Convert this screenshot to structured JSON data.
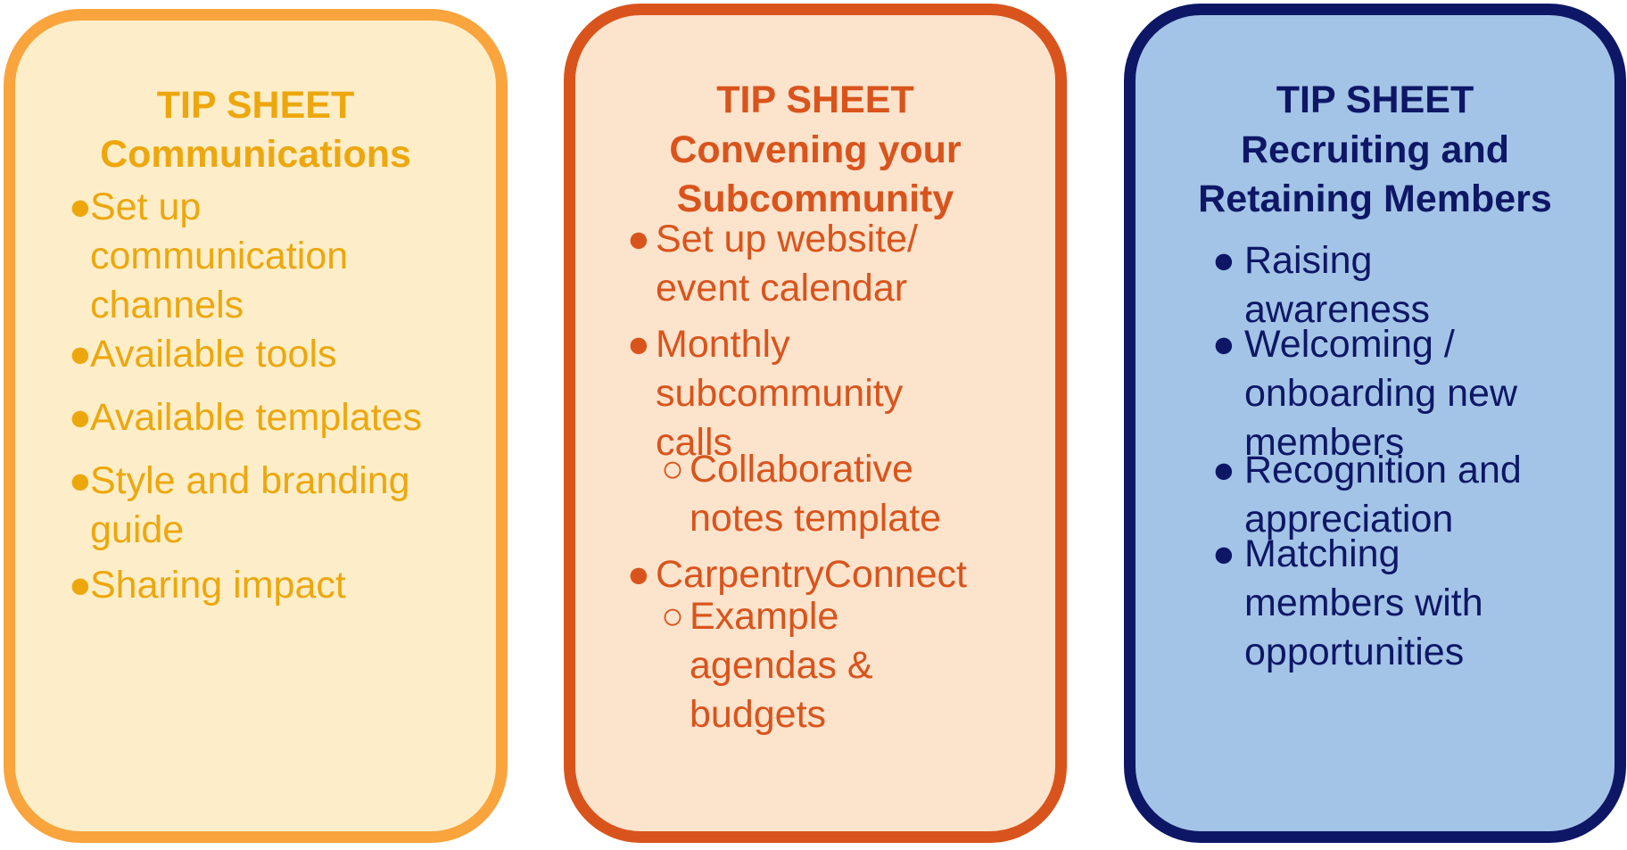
{
  "cards": [
    {
      "header": "TIP SHEET",
      "title_lines": [
        "Communications"
      ],
      "items": [
        {
          "lines": [
            "Set up",
            "communication",
            "channels"
          ],
          "sub": []
        },
        {
          "lines": [
            "Available tools"
          ],
          "sub": []
        },
        {
          "lines": [
            "Available templates"
          ],
          "sub": []
        },
        {
          "lines": [
            "Style and branding",
            "guide"
          ],
          "sub": []
        },
        {
          "lines": [
            "Sharing impact"
          ],
          "sub": []
        }
      ]
    },
    {
      "header": "TIP SHEET",
      "title_lines": [
        "Convening your",
        "Subcommunity"
      ],
      "items": [
        {
          "lines": [
            "Set up website/",
            "event calendar"
          ],
          "sub": []
        },
        {
          "lines": [
            "Monthly",
            "subcommunity",
            "calls"
          ],
          "sub": [
            {
              "lines": [
                "Collaborative",
                "notes template"
              ]
            }
          ]
        },
        {
          "lines": [
            "CarpentryConnect"
          ],
          "sub": [
            {
              "lines": [
                "Example",
                "agendas &",
                "budgets"
              ]
            }
          ]
        }
      ]
    },
    {
      "header": "TIP SHEET",
      "title_lines": [
        "Recruiting and",
        "Retaining Members"
      ],
      "items": [
        {
          "lines": [
            "Raising",
            "awareness"
          ],
          "sub": []
        },
        {
          "lines": [
            "Welcoming /",
            "onboarding new",
            "members"
          ],
          "sub": []
        },
        {
          "lines": [
            "Recognition and",
            "appreciation"
          ],
          "sub": []
        },
        {
          "lines": [
            "Matching",
            "members with",
            "opportunities"
          ],
          "sub": []
        }
      ]
    }
  ],
  "bullet_symbols": {
    "main": "●",
    "sub": "○"
  }
}
